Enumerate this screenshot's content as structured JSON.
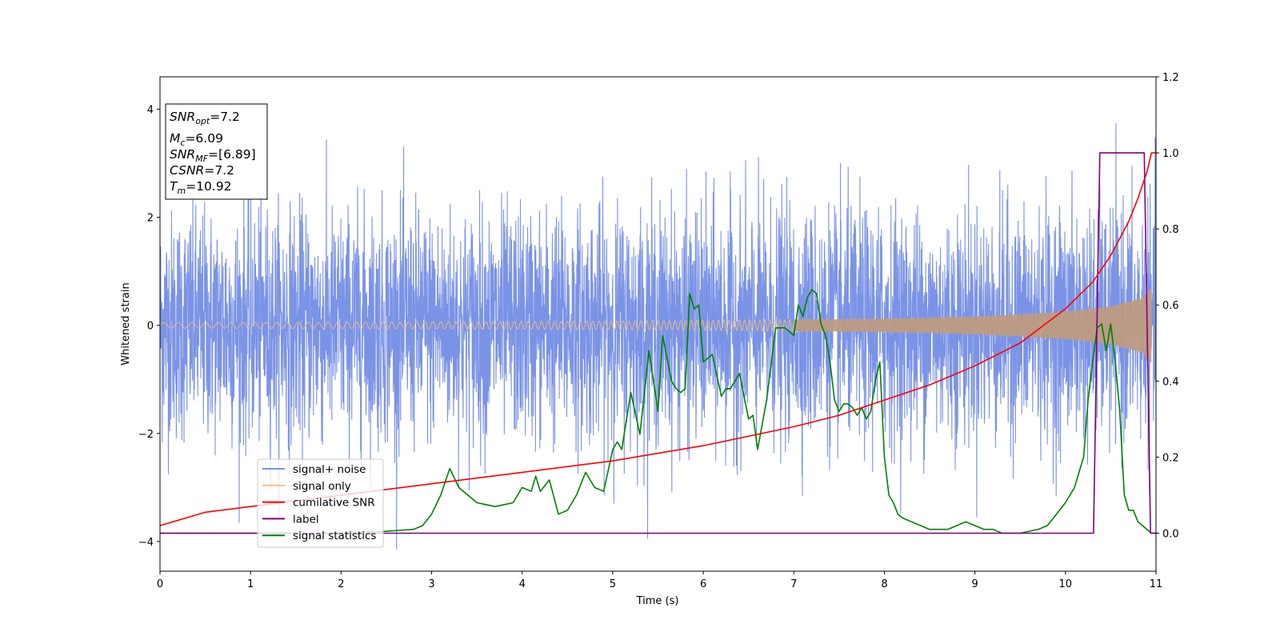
{
  "chart_data": {
    "type": "line",
    "xlabel": "Time (s)",
    "ylabel": "Whitened strain",
    "xlim": [
      0,
      11
    ],
    "ylim_left": [
      -4.55,
      4.6
    ],
    "ylim_right": [
      -0.1,
      1.2
    ],
    "x_ticks": [
      0,
      1,
      2,
      3,
      4,
      5,
      6,
      7,
      8,
      9,
      10,
      11
    ],
    "y_ticks_left": [
      -4,
      -2,
      0,
      2,
      4
    ],
    "y_ticks_right": [
      0.0,
      0.2,
      0.4,
      0.6,
      0.8,
      1.0,
      1.2
    ],
    "y_tick_labels_right": [
      "0.0",
      "0.2",
      "0.4",
      "0.6",
      "0.8",
      "1.0",
      "1.2"
    ],
    "grid": false,
    "legend_position": "lower-left",
    "annotation": {
      "snr_opt": {
        "name": "SNR",
        "sub": "opt",
        "value": "=7.2"
      },
      "mc": {
        "name": "M",
        "sub": "c",
        "value": "=6.09"
      },
      "snr_mf": {
        "name": "SNR",
        "sub": "MF",
        "value": "=[6.89]"
      },
      "csnr": {
        "name": "CSNR",
        "value": "=7.2"
      },
      "tm": {
        "name": "T",
        "sub": "m",
        "value": "=10.92"
      }
    },
    "series": [
      {
        "name": "signal+ noise",
        "axis": "left",
        "color": "#7b93e6",
        "approx_range": [
          -4.15,
          4.2
        ]
      },
      {
        "name": "signal only",
        "axis": "left",
        "color": "#f5c27a",
        "approx_amplitude": [
          [
            0,
            0.05
          ],
          [
            5,
            0.08
          ],
          [
            8,
            0.12
          ],
          [
            9,
            0.16
          ],
          [
            10,
            0.25
          ],
          [
            10.5,
            0.35
          ],
          [
            10.85,
            0.5
          ],
          [
            10.95,
            0.7
          ]
        ]
      },
      {
        "name": "cumilative SNR",
        "axis": "right",
        "color": "#ff0000",
        "x": [
          0,
          0.5,
          1,
          2,
          3,
          4,
          5,
          6,
          7,
          7.5,
          8,
          8.5,
          9,
          9.5,
          10,
          10.3,
          10.5,
          10.7,
          10.8,
          10.9,
          10.95,
          11
        ],
        "y": [
          0.02,
          0.055,
          0.07,
          0.1,
          0.13,
          0.16,
          0.19,
          0.23,
          0.28,
          0.31,
          0.35,
          0.39,
          0.44,
          0.5,
          0.59,
          0.66,
          0.73,
          0.82,
          0.88,
          0.95,
          1.0,
          1.0
        ]
      },
      {
        "name": "label",
        "axis": "right",
        "color": "#800080",
        "x": [
          0,
          10.31,
          10.38,
          10.87,
          10.94,
          11
        ],
        "y": [
          0,
          0,
          1,
          1,
          0,
          0
        ]
      },
      {
        "name": "signal statistics",
        "axis": "right",
        "color": "#008000",
        "x": [
          0,
          1.0,
          2.0,
          2.5,
          2.8,
          2.9,
          3.0,
          3.1,
          3.2,
          3.3,
          3.4,
          3.5,
          3.6,
          3.7,
          3.8,
          3.9,
          4.0,
          4.1,
          4.15,
          4.2,
          4.3,
          4.4,
          4.5,
          4.6,
          4.7,
          4.8,
          4.9,
          5.0,
          5.05,
          5.1,
          5.2,
          5.3,
          5.4,
          5.5,
          5.55,
          5.65,
          5.7,
          5.75,
          5.8,
          5.85,
          5.9,
          5.95,
          6.0,
          6.1,
          6.2,
          6.25,
          6.3,
          6.4,
          6.5,
          6.55,
          6.6,
          6.7,
          6.8,
          6.85,
          6.9,
          6.95,
          7.0,
          7.05,
          7.1,
          7.15,
          7.2,
          7.25,
          7.3,
          7.35,
          7.4,
          7.45,
          7.5,
          7.55,
          7.6,
          7.65,
          7.7,
          7.75,
          7.8,
          7.85,
          7.9,
          7.95,
          8.0,
          8.05,
          8.1,
          8.15,
          8.2,
          8.3,
          8.4,
          8.5,
          8.6,
          8.7,
          8.8,
          8.9,
          9.0,
          9.1,
          9.2,
          9.3,
          9.4,
          9.5,
          9.6,
          9.7,
          9.8,
          9.9,
          10.0,
          10.1,
          10.2,
          10.25,
          10.3,
          10.35,
          10.4,
          10.45,
          10.5,
          10.55,
          10.6,
          10.65,
          10.7,
          10.75,
          10.8,
          10.85,
          10.9,
          10.95,
          11.0
        ],
        "y": [
          0.0,
          0.0,
          0.0,
          0.005,
          0.01,
          0.02,
          0.05,
          0.1,
          0.17,
          0.12,
          0.1,
          0.08,
          0.075,
          0.07,
          0.075,
          0.08,
          0.12,
          0.11,
          0.15,
          0.11,
          0.14,
          0.05,
          0.06,
          0.1,
          0.16,
          0.12,
          0.11,
          0.22,
          0.24,
          0.22,
          0.37,
          0.26,
          0.48,
          0.32,
          0.52,
          0.4,
          0.38,
          0.37,
          0.38,
          0.63,
          0.59,
          0.6,
          0.45,
          0.47,
          0.36,
          0.38,
          0.38,
          0.42,
          0.3,
          0.31,
          0.22,
          0.35,
          0.54,
          0.54,
          0.54,
          0.53,
          0.52,
          0.6,
          0.57,
          0.62,
          0.64,
          0.63,
          0.55,
          0.52,
          0.45,
          0.35,
          0.32,
          0.34,
          0.34,
          0.33,
          0.31,
          0.33,
          0.3,
          0.32,
          0.4,
          0.45,
          0.2,
          0.1,
          0.08,
          0.05,
          0.04,
          0.03,
          0.02,
          0.01,
          0.01,
          0.01,
          0.02,
          0.03,
          0.02,
          0.01,
          0.01,
          0.0,
          0.0,
          0.0,
          0.005,
          0.01,
          0.02,
          0.05,
          0.08,
          0.12,
          0.2,
          0.35,
          0.45,
          0.54,
          0.55,
          0.48,
          0.55,
          0.45,
          0.32,
          0.1,
          0.06,
          0.06,
          0.03,
          0.02,
          0.01,
          0.0,
          0.0
        ]
      }
    ]
  }
}
